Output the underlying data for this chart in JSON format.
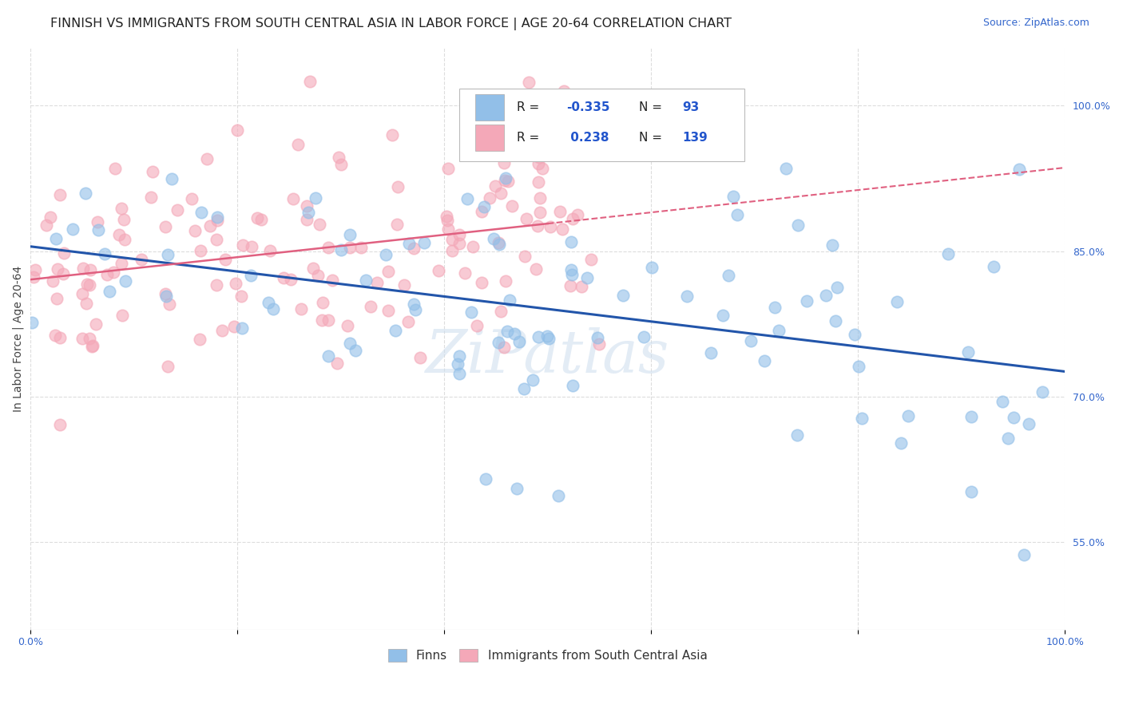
{
  "title": "FINNISH VS IMMIGRANTS FROM SOUTH CENTRAL ASIA IN LABOR FORCE | AGE 20-64 CORRELATION CHART",
  "source": "Source: ZipAtlas.com",
  "ylabel": "In Labor Force | Age 20-64",
  "xlim": [
    0.0,
    1.0
  ],
  "ylim": [
    0.46,
    1.06
  ],
  "x_ticks": [
    0.0,
    0.2,
    0.4,
    0.6,
    0.8,
    1.0
  ],
  "x_tick_labels": [
    "0.0%",
    "",
    "",
    "",
    "",
    "100.0%"
  ],
  "y_tick_labels_right": [
    "55.0%",
    "70.0%",
    "85.0%",
    "100.0%"
  ],
  "y_tick_vals_right": [
    0.55,
    0.7,
    0.85,
    1.0
  ],
  "finns_color": "#92bfe8",
  "immigrants_color": "#f4a8b8",
  "finns_line_color": "#2255aa",
  "immigrants_line_color": "#e06080",
  "finns_R": -0.335,
  "finns_N": 93,
  "immigrants_R": 0.238,
  "immigrants_N": 139,
  "legend_label_finns": "Finns",
  "legend_label_immigrants": "Immigrants from South Central Asia",
  "watermark": "ZiPatlas",
  "background_color": "#ffffff",
  "grid_color": "#dddddd",
  "title_fontsize": 11.5,
  "source_fontsize": 9,
  "axis_label_fontsize": 10,
  "tick_fontsize": 9,
  "legend_fontsize": 11
}
